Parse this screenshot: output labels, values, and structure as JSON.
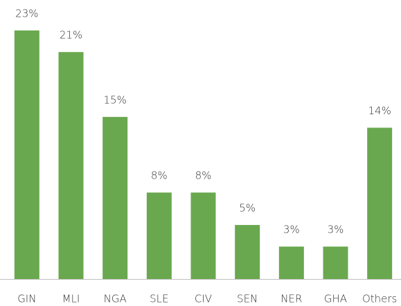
{
  "chart_data": {
    "type": "bar",
    "categories": [
      "GIN",
      "MLI",
      "NGA",
      "SLE",
      "CIV",
      "SEN",
      "NER",
      "GHA",
      "Others"
    ],
    "values": [
      23,
      21,
      15,
      8,
      8,
      5,
      3,
      3,
      14
    ],
    "value_labels": [
      "23%",
      "21%",
      "15%",
      "8%",
      "8%",
      "5%",
      "3%",
      "3%",
      "14%"
    ],
    "color": "#6aa84f"
  }
}
